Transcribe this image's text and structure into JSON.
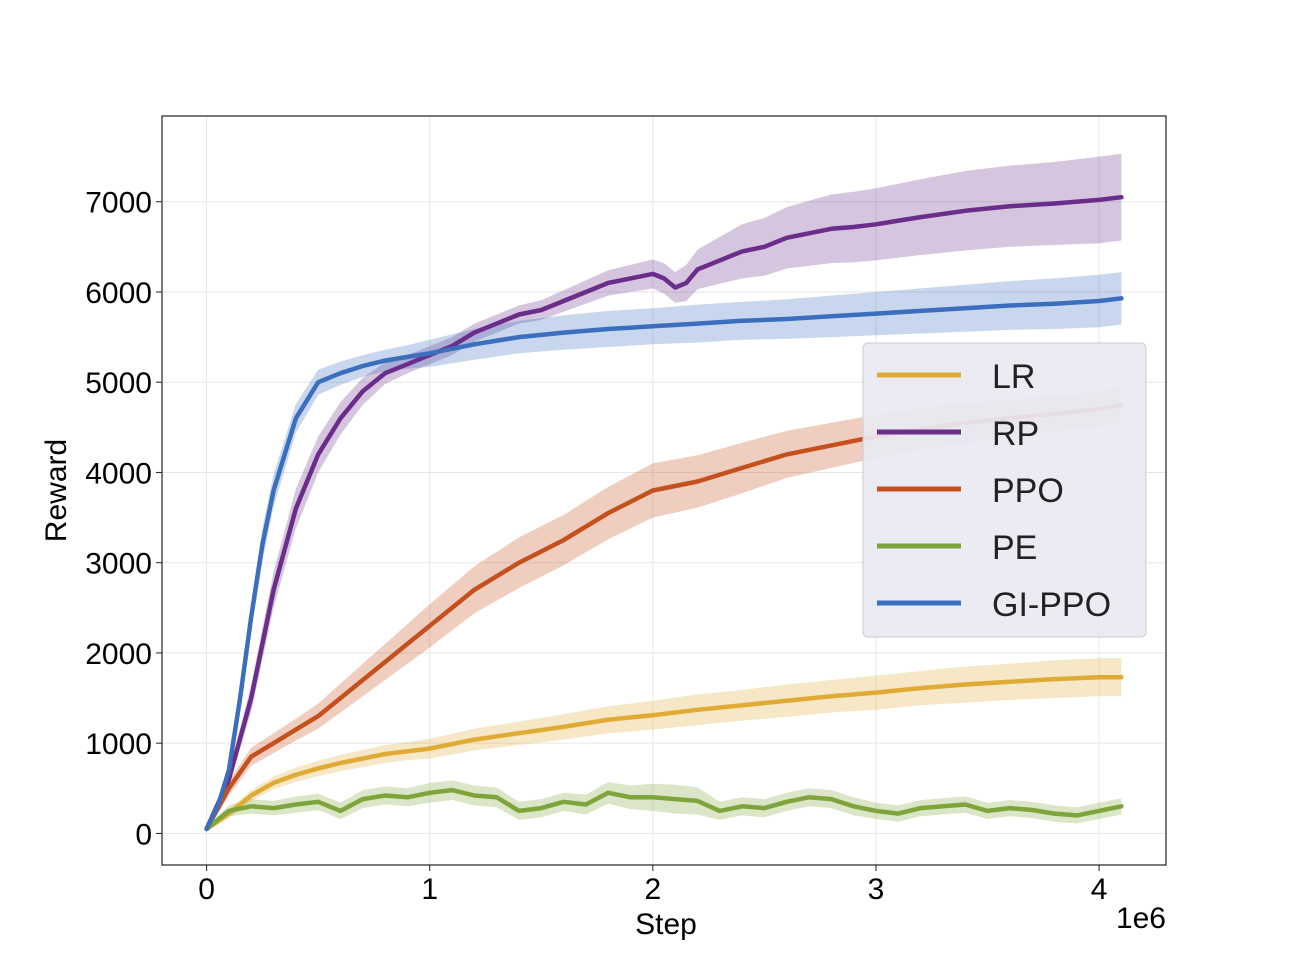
{
  "chart_data": {
    "type": "line",
    "title": "",
    "xlabel": "Step",
    "ylabel": "Reward",
    "x_offset_label": "1e6",
    "xlim": [
      -0.2,
      4.3
    ],
    "ylim": [
      -350,
      7950
    ],
    "xticks": [
      0,
      1,
      2,
      3,
      4
    ],
    "xtick_labels": [
      "0",
      "1",
      "2",
      "3",
      "4"
    ],
    "yticks": [
      0,
      1000,
      2000,
      3000,
      4000,
      5000,
      6000,
      7000
    ],
    "ytick_labels": [
      "0",
      "1000",
      "2000",
      "3000",
      "4000",
      "5000",
      "6000",
      "7000"
    ],
    "grid": true,
    "legend_position": "center-right",
    "series": [
      {
        "name": "LR",
        "color": "#e0ab34",
        "x": [
          0,
          0.1,
          0.2,
          0.3,
          0.4,
          0.5,
          0.6,
          0.7,
          0.8,
          0.9,
          1.0,
          1.2,
          1.4,
          1.6,
          1.8,
          2.0,
          2.2,
          2.4,
          2.6,
          2.8,
          3.0,
          3.2,
          3.4,
          3.6,
          3.8,
          4.0,
          4.1
        ],
        "values": [
          50,
          220,
          420,
          560,
          650,
          720,
          780,
          830,
          880,
          910,
          940,
          1040,
          1110,
          1180,
          1260,
          1310,
          1370,
          1420,
          1470,
          1520,
          1560,
          1610,
          1650,
          1680,
          1710,
          1730,
          1730
        ],
        "band": [
          30,
          50,
          60,
          70,
          80,
          85,
          90,
          95,
          100,
          100,
          110,
          120,
          130,
          140,
          150,
          160,
          170,
          170,
          180,
          180,
          190,
          190,
          200,
          200,
          210,
          210,
          210
        ]
      },
      {
        "name": "RP",
        "color": "#6a2d8a",
        "x": [
          0,
          0.1,
          0.2,
          0.3,
          0.4,
          0.5,
          0.6,
          0.7,
          0.8,
          0.9,
          1.0,
          1.1,
          1.2,
          1.3,
          1.4,
          1.5,
          1.6,
          1.7,
          1.8,
          1.9,
          2.0,
          2.05,
          2.1,
          2.15,
          2.2,
          2.3,
          2.4,
          2.5,
          2.6,
          2.7,
          2.8,
          2.9,
          3.0,
          3.2,
          3.4,
          3.6,
          3.8,
          4.0,
          4.1
        ],
        "values": [
          50,
          600,
          1500,
          2700,
          3600,
          4200,
          4600,
          4900,
          5100,
          5200,
          5300,
          5400,
          5550,
          5650,
          5750,
          5800,
          5900,
          6000,
          6100,
          6150,
          6200,
          6150,
          6050,
          6100,
          6250,
          6350,
          6450,
          6500,
          6600,
          6650,
          6700,
          6720,
          6750,
          6830,
          6900,
          6950,
          6980,
          7020,
          7050
        ],
        "band": [
          30,
          80,
          150,
          200,
          220,
          200,
          180,
          150,
          120,
          100,
          100,
          100,
          100,
          100,
          100,
          110,
          120,
          130,
          140,
          150,
          160,
          170,
          170,
          200,
          220,
          260,
          300,
          320,
          340,
          360,
          380,
          390,
          400,
          420,
          440,
          450,
          460,
          480,
          480
        ]
      },
      {
        "name": "PPO",
        "color": "#c4501e",
        "x": [
          0,
          0.1,
          0.2,
          0.3,
          0.4,
          0.5,
          0.6,
          0.7,
          0.8,
          0.9,
          1.0,
          1.2,
          1.4,
          1.6,
          1.8,
          2.0,
          2.2,
          2.4,
          2.6,
          2.8,
          3.0,
          3.2,
          3.4,
          3.6,
          3.8,
          4.0,
          4.1
        ],
        "values": [
          50,
          500,
          850,
          1000,
          1150,
          1300,
          1500,
          1700,
          1900,
          2100,
          2300,
          2700,
          3000,
          3250,
          3550,
          3800,
          3900,
          4050,
          4200,
          4300,
          4400,
          4480,
          4550,
          4600,
          4650,
          4700,
          4750
        ],
        "band": [
          30,
          80,
          100,
          110,
          120,
          140,
          160,
          180,
          200,
          220,
          240,
          260,
          280,
          280,
          290,
          300,
          290,
          280,
          260,
          250,
          240,
          230,
          220,
          210,
          200,
          190,
          190
        ]
      },
      {
        "name": "PE",
        "color": "#7ea53b",
        "x": [
          0,
          0.1,
          0.2,
          0.3,
          0.4,
          0.5,
          0.6,
          0.7,
          0.8,
          0.9,
          1.0,
          1.1,
          1.2,
          1.3,
          1.4,
          1.5,
          1.6,
          1.7,
          1.8,
          1.9,
          2.0,
          2.1,
          2.2,
          2.3,
          2.4,
          2.5,
          2.6,
          2.7,
          2.8,
          2.9,
          3.0,
          3.1,
          3.2,
          3.3,
          3.4,
          3.5,
          3.6,
          3.7,
          3.8,
          3.9,
          4.0,
          4.1
        ],
        "values": [
          50,
          250,
          300,
          280,
          320,
          350,
          250,
          380,
          420,
          400,
          450,
          480,
          420,
          400,
          250,
          280,
          350,
          320,
          450,
          400,
          400,
          380,
          360,
          250,
          300,
          280,
          350,
          400,
          380,
          300,
          250,
          220,
          280,
          300,
          320,
          250,
          280,
          260,
          220,
          200,
          250,
          300
        ],
        "band": [
          30,
          60,
          80,
          80,
          90,
          90,
          90,
          100,
          100,
          100,
          110,
          110,
          110,
          110,
          100,
          100,
          100,
          110,
          120,
          130,
          150,
          160,
          150,
          100,
          100,
          100,
          100,
          100,
          100,
          100,
          90,
          90,
          90,
          90,
          90,
          90,
          90,
          90,
          90,
          90,
          90,
          90
        ]
      },
      {
        "name": "GI-PPO",
        "color": "#3b6fbd",
        "x": [
          0,
          0.05,
          0.1,
          0.15,
          0.2,
          0.25,
          0.3,
          0.35,
          0.4,
          0.45,
          0.5,
          0.6,
          0.7,
          0.8,
          0.9,
          1.0,
          1.2,
          1.4,
          1.6,
          1.8,
          2.0,
          2.2,
          2.4,
          2.6,
          2.8,
          3.0,
          3.2,
          3.4,
          3.6,
          3.8,
          4.0,
          4.1
        ],
        "values": [
          50,
          300,
          700,
          1500,
          2400,
          3200,
          3800,
          4200,
          4600,
          4800,
          5000,
          5100,
          5180,
          5240,
          5280,
          5320,
          5420,
          5500,
          5550,
          5590,
          5620,
          5650,
          5680,
          5700,
          5730,
          5760,
          5790,
          5820,
          5850,
          5870,
          5900,
          5930
        ],
        "band": [
          30,
          60,
          100,
          140,
          160,
          180,
          180,
          170,
          160,
          150,
          140,
          130,
          120,
          120,
          130,
          150,
          170,
          180,
          190,
          200,
          200,
          210,
          210,
          220,
          230,
          240,
          250,
          260,
          270,
          280,
          290,
          290
        ]
      }
    ]
  }
}
